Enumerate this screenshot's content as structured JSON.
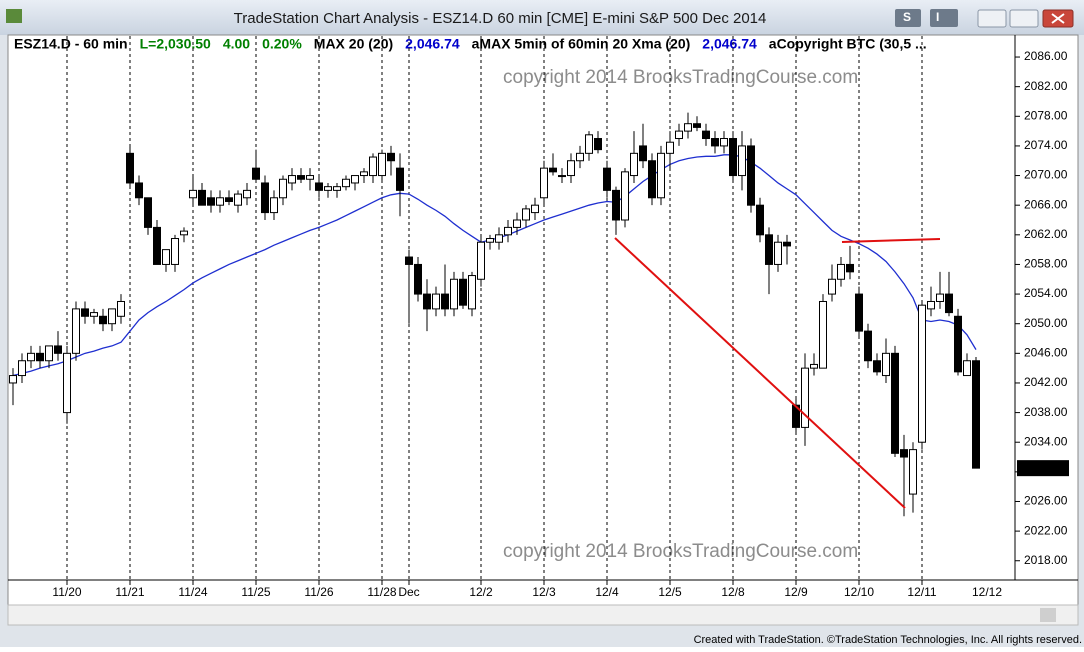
{
  "window_title": "TradeStation Chart Analysis - ESZ14.D 60 min [CME] E-mini S&P 500 Dec 2014",
  "footer": "Created with TradeStation. ©TradeStation Technologies, Inc. All rights reserved.",
  "chart_data": {
    "type": "candlestick",
    "info_bar": [
      {
        "text": "ESZ14.D - 60 min",
        "color": "#000000"
      },
      {
        "text": "L=2,030.50",
        "color": "#008000"
      },
      {
        "text": "4.00",
        "color": "#008000"
      },
      {
        "text": "0.20%",
        "color": "#008000"
      },
      {
        "text": "MAX 20 (20)",
        "color": "#000000"
      },
      {
        "text": "2,046.74",
        "color": "#0000cc"
      },
      {
        "text": "aMAX 5min of 60min 20 Xma (20)",
        "color": "#000000"
      },
      {
        "text": "2,046.74",
        "color": "#0000cc"
      },
      {
        "text": "aCopyright BTC (30,5 ...",
        "color": "#000000"
      }
    ],
    "watermark": "copyright 2014 BrooksTradingCourse.com",
    "categories": [
      null,
      null,
      null,
      null,
      null,
      null,
      "11/20",
      null,
      null,
      null,
      null,
      null,
      null,
      "11/21",
      null,
      null,
      null,
      null,
      null,
      null,
      "11/24",
      null,
      null,
      null,
      null,
      null,
      null,
      "11/25",
      null,
      null,
      null,
      null,
      null,
      null,
      "11/26",
      null,
      null,
      null,
      null,
      null,
      null,
      "11/28",
      null,
      null,
      "Dec",
      null,
      null,
      null,
      null,
      null,
      null,
      null,
      "12/2",
      null,
      null,
      null,
      null,
      null,
      null,
      "12/3",
      null,
      null,
      null,
      null,
      null,
      null,
      "12/4",
      null,
      null,
      null,
      null,
      null,
      null,
      "12/5",
      null,
      null,
      null,
      null,
      null,
      null,
      "12/8",
      null,
      null,
      null,
      null,
      null,
      null,
      "12/9",
      null,
      null,
      null,
      null,
      null,
      null,
      "12/10",
      null,
      null,
      null,
      null,
      null,
      null,
      "12/11",
      null,
      null,
      null,
      null,
      null,
      null
    ],
    "end_label": "12/12",
    "open": [
      2042,
      2043,
      2045,
      2046,
      2045,
      2047,
      2038,
      2046,
      2052,
      2051,
      2051,
      2050,
      2051,
      2073,
      2069,
      2067,
      2063,
      2058,
      2058,
      2062,
      2067,
      2068,
      2067,
      2066,
      2067,
      2066,
      2067,
      2071,
      2069,
      2065,
      2067,
      2069,
      2070,
      2069.5,
      2069,
      2068,
      2068,
      2068.5,
      2069,
      2070,
      2070,
      2070,
      2073,
      2071,
      2059,
      2058,
      2054,
      2052,
      2054,
      2052,
      2056,
      2052,
      2056,
      2061,
      2061,
      2062,
      2063,
      2064,
      2065,
      2067,
      2071,
      2070,
      2070,
      2072,
      2073,
      2075,
      2071,
      2068,
      2064,
      2070,
      2074,
      2072,
      2067,
      2073,
      2075,
      2076,
      2077,
      2076,
      2075,
      2074,
      2075,
      2070,
      2074,
      2066,
      2062,
      2058,
      2061,
      2039,
      2036,
      2044,
      2044,
      2054,
      2056,
      2058,
      2054,
      2049,
      2045,
      2043,
      2046,
      2033,
      2027,
      2034,
      2052,
      2053,
      2054,
      2051,
      2043,
      2045
    ],
    "high": [
      2044,
      2046,
      2047,
      2047,
      2047,
      2049,
      2047,
      2053,
      2053,
      2052,
      2052,
      2052,
      2054,
      2074,
      2070,
      2067,
      2064,
      2060,
      2062,
      2063,
      2070,
      2069,
      2068,
      2068,
      2068,
      2068,
      2069,
      2073.5,
      2070,
      2068,
      2070,
      2071,
      2071,
      2071,
      2070,
      2069,
      2069,
      2070,
      2070,
      2071,
      2073,
      2073.5,
      2074,
      2073,
      2060,
      2059,
      2056,
      2055,
      2058,
      2057,
      2057,
      2057,
      2062,
      2062,
      2063,
      2064,
      2065,
      2066,
      2067,
      2072,
      2073,
      2071,
      2073,
      2074,
      2076,
      2076,
      2072,
      2068.5,
      2071,
      2076,
      2077,
      2073,
      2074,
      2076,
      2077,
      2078.5,
      2078,
      2077,
      2076,
      2076,
      2076,
      2076,
      2075,
      2067,
      2063,
      2062,
      2062,
      2040,
      2046,
      2046,
      2054,
      2058,
      2059,
      2060.5,
      2055,
      2050,
      2046,
      2048,
      2047,
      2035,
      2034,
      2053,
      2055,
      2057,
      2057,
      2052,
      2046,
      2045.5
    ],
    "low": [
      2039,
      2042,
      2044,
      2044,
      2044,
      2045,
      2036.5,
      2045,
      2050,
      2050,
      2049,
      2049,
      2050,
      2068.5,
      2066,
      2062,
      2058,
      2057,
      2057,
      2061,
      2066,
      2066,
      2065,
      2065,
      2066,
      2065,
      2066,
      2069,
      2064,
      2064,
      2066,
      2068,
      2069,
      2068,
      2067,
      2067,
      2067,
      2068,
      2068,
      2069,
      2069,
      2069,
      2070,
      2064.5,
      2050,
      2053,
      2049,
      2051,
      2051,
      2051,
      2052,
      2051,
      2055,
      2060,
      2060,
      2061,
      2062,
      2063,
      2064,
      2066,
      2070,
      2069,
      2069,
      2071,
      2072,
      2073,
      2067,
      2062,
      2063,
      2069,
      2071,
      2066,
      2066,
      2071,
      2074,
      2075,
      2076,
      2074,
      2073,
      2073,
      2069,
      2068,
      2065,
      2061,
      2054,
      2057,
      2058,
      2035,
      2033.5,
      2043,
      2044,
      2053,
      2055,
      2056,
      2048,
      2044,
      2043,
      2042,
      2032,
      2024,
      2024.5,
      2033,
      2051,
      2052,
      2051,
      2043,
      2043,
      2031
    ],
    "close": [
      2043,
      2045,
      2046,
      2045,
      2047,
      2046,
      2046,
      2052,
      2051,
      2051.5,
      2050,
      2052,
      2053,
      2069,
      2067,
      2063,
      2058,
      2060,
      2061.5,
      2062.5,
      2068,
      2066,
      2066,
      2067,
      2066.5,
      2067.5,
      2068,
      2069.5,
      2065,
      2067,
      2069.5,
      2070,
      2069.5,
      2070,
      2068,
      2068.5,
      2068.5,
      2069.5,
      2070,
      2070.5,
      2072.5,
      2073,
      2072,
      2068,
      2058,
      2054,
      2052,
      2054,
      2052,
      2056,
      2052.5,
      2056.5,
      2061,
      2061.5,
      2062,
      2063,
      2064,
      2065.5,
      2066,
      2071,
      2070.5,
      2070,
      2072,
      2073,
      2075.5,
      2073.5,
      2068,
      2064,
      2070.5,
      2073,
      2072,
      2067,
      2073,
      2074.5,
      2076,
      2077,
      2076.5,
      2075,
      2074,
      2075,
      2070,
      2074,
      2066,
      2062,
      2058,
      2061,
      2060.5,
      2036,
      2044,
      2044.5,
      2053,
      2056,
      2058,
      2057,
      2049,
      2045,
      2043.5,
      2046,
      2032.5,
      2032,
      2033,
      2052.5,
      2053,
      2054,
      2051.5,
      2043.5,
      2045,
      2030.5
    ],
    "up_color": "#ffffff",
    "down_color": "#000000",
    "series": [
      {
        "name": "MAX 20 (20)",
        "color": "#1f2fd0",
        "values": [
          2043,
          2043.3,
          2043.6,
          2044,
          2044.3,
          2044.6,
          2045,
          2045.5,
          2046,
          2046.3,
          2046.7,
          2047,
          2047.5,
          2049,
          2050.5,
          2051.5,
          2052.3,
          2053,
          2053.8,
          2054.6,
          2055.5,
          2056.2,
          2056.8,
          2057.4,
          2058,
          2058.5,
          2059,
          2059.5,
          2060,
          2060.6,
          2061.1,
          2061.6,
          2062.1,
          2062.6,
          2063,
          2063.5,
          2064,
          2064.6,
          2065.2,
          2065.8,
          2066.4,
          2067,
          2067.4,
          2067.6,
          2067.5,
          2066.8,
          2066,
          2065.3,
          2064.5,
          2063.5,
          2062.6,
          2061.8,
          2061,
          2061.3,
          2061.6,
          2062,
          2062.5,
          2063,
          2063.5,
          2064,
          2064.4,
          2064.8,
          2065.2,
          2065.6,
          2066,
          2066.3,
          2066.5,
          2066.4,
          2067.2,
          2068.2,
          2069.2,
          2070,
          2070.8,
          2071.5,
          2072,
          2072.3,
          2072.5,
          2072.6,
          2072.6,
          2072.8,
          2072.8,
          2072.5,
          2071.8,
          2071,
          2070,
          2069,
          2068.2,
          2067.4,
          2066.2,
          2065,
          2063.8,
          2062.6,
          2061.8,
          2061.3,
          2060.8,
          2060.2,
          2059.4,
          2058.4,
          2057,
          2055.4,
          2053.5,
          2050.5,
          2050.3,
          2050.5,
          2050.3,
          2049.8,
          2048.5,
          2046.5
        ]
      }
    ],
    "ylim": [
      2015.4,
      2088.3
    ],
    "yticks": [
      {
        "value": 2018,
        "label": "2018.00"
      },
      {
        "value": 2022,
        "label": "2022.00"
      },
      {
        "value": 2026,
        "label": "2026.00"
      },
      {
        "value": 2030,
        "label": "2030.00"
      },
      {
        "value": 2034,
        "label": "2034.00"
      },
      {
        "value": 2038,
        "label": "2038.00"
      },
      {
        "value": 2042,
        "label": "2042.00"
      },
      {
        "value": 2046,
        "label": "2046.00"
      },
      {
        "value": 2050,
        "label": "2050.00"
      },
      {
        "value": 2054,
        "label": "2054.00"
      },
      {
        "value": 2058,
        "label": "2058.00"
      },
      {
        "value": 2062,
        "label": "2062.00"
      },
      {
        "value": 2066,
        "label": "2066.00"
      },
      {
        "value": 2070,
        "label": "2070.00"
      },
      {
        "value": 2074,
        "label": "2074.00"
      },
      {
        "value": 2078,
        "label": "2078.00"
      },
      {
        "value": 2082,
        "label": "2082.00"
      },
      {
        "value": 2086,
        "label": "2086.00"
      }
    ],
    "last_price": {
      "value": 2030.5,
      "label": "2030.50"
    }
  }
}
